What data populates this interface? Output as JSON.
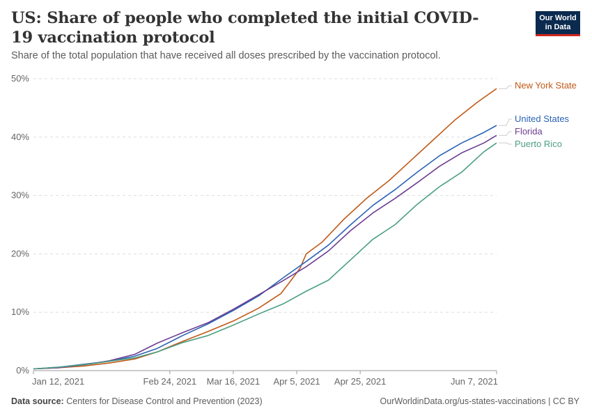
{
  "header": {
    "title": "US: Share of people who completed the initial COVID-19 vaccination protocol",
    "subtitle": "Share of the total population that have received all doses prescribed by the vaccination protocol.",
    "logo_line1": "Our World",
    "logo_line2": "in Data"
  },
  "footer": {
    "source_label": "Data source:",
    "source_text": "Centers for Disease Control and Prevention (2023)",
    "url_text": "OurWorldinData.org/us-states-vaccinations | CC BY"
  },
  "colors": {
    "new_york": "#c05917",
    "united_states": "#2b63b5",
    "florida": "#6d3e91",
    "puerto_rico": "#4c9f83",
    "grid": "#dddddd",
    "axis_text": "#666666"
  },
  "chart_data": {
    "type": "line",
    "xlim": [
      "2021-01-12",
      "2021-06-07"
    ],
    "ylim": [
      0,
      50
    ],
    "y_unit": "%",
    "grid": "horizontal dashed",
    "legend": "right, labels at line ends",
    "x_ticks": [
      {
        "date": "2021-01-12",
        "label": "Jan 12, 2021"
      },
      {
        "date": "2021-02-24",
        "label": "Feb 24, 2021"
      },
      {
        "date": "2021-03-16",
        "label": "Mar 16, 2021"
      },
      {
        "date": "2021-04-05",
        "label": "Apr 5, 2021"
      },
      {
        "date": "2021-04-25",
        "label": "Apr 25, 2021"
      },
      {
        "date": "2021-06-07",
        "label": "Jun 7, 2021"
      }
    ],
    "y_ticks": [
      {
        "value": 0,
        "label": "0%"
      },
      {
        "value": 10,
        "label": "10%"
      },
      {
        "value": 20,
        "label": "20%"
      },
      {
        "value": 30,
        "label": "30%"
      },
      {
        "value": 40,
        "label": "40%"
      },
      {
        "value": 50,
        "label": "50%"
      }
    ],
    "series": [
      {
        "name": "New York State",
        "color_key": "new_york",
        "points": [
          [
            "2021-01-12",
            0.3
          ],
          [
            "2021-01-20",
            0.5
          ],
          [
            "2021-01-28",
            0.8
          ],
          [
            "2021-02-05",
            1.3
          ],
          [
            "2021-02-13",
            2.0
          ],
          [
            "2021-02-20",
            3.2
          ],
          [
            "2021-02-28",
            5.0
          ],
          [
            "2021-03-08",
            6.7
          ],
          [
            "2021-03-16",
            8.5
          ],
          [
            "2021-03-24",
            10.7
          ],
          [
            "2021-03-31",
            13.2
          ],
          [
            "2021-04-03",
            15.3
          ],
          [
            "2021-04-06",
            17.5
          ],
          [
            "2021-04-08",
            20.0
          ],
          [
            "2021-04-13",
            22.0
          ],
          [
            "2021-04-20",
            26.0
          ],
          [
            "2021-04-27",
            29.5
          ],
          [
            "2021-05-04",
            32.5
          ],
          [
            "2021-05-11",
            36.0
          ],
          [
            "2021-05-18",
            39.5
          ],
          [
            "2021-05-25",
            43.0
          ],
          [
            "2021-06-01",
            46.0
          ],
          [
            "2021-06-07",
            48.3
          ]
        ]
      },
      {
        "name": "United States",
        "color_key": "united_states",
        "points": [
          [
            "2021-01-12",
            0.3
          ],
          [
            "2021-01-20",
            0.6
          ],
          [
            "2021-01-28",
            1.1
          ],
          [
            "2021-02-05",
            1.6
          ],
          [
            "2021-02-13",
            2.5
          ],
          [
            "2021-02-20",
            3.8
          ],
          [
            "2021-02-28",
            6.0
          ],
          [
            "2021-03-08",
            8.0
          ],
          [
            "2021-03-16",
            10.3
          ],
          [
            "2021-03-24",
            12.8
          ],
          [
            "2021-04-01",
            16.0
          ],
          [
            "2021-04-08",
            18.7
          ],
          [
            "2021-04-15",
            21.5
          ],
          [
            "2021-04-22",
            25.0
          ],
          [
            "2021-04-29",
            28.3
          ],
          [
            "2021-05-06",
            31.0
          ],
          [
            "2021-05-13",
            34.0
          ],
          [
            "2021-05-20",
            36.8
          ],
          [
            "2021-05-27",
            39.0
          ],
          [
            "2021-06-03",
            40.8
          ],
          [
            "2021-06-07",
            42.0
          ]
        ]
      },
      {
        "name": "Florida",
        "color_key": "florida",
        "points": [
          [
            "2021-01-12",
            0.3
          ],
          [
            "2021-01-20",
            0.5
          ],
          [
            "2021-01-28",
            1.0
          ],
          [
            "2021-02-05",
            1.7
          ],
          [
            "2021-02-13",
            2.8
          ],
          [
            "2021-02-20",
            4.7
          ],
          [
            "2021-02-28",
            6.5
          ],
          [
            "2021-03-08",
            8.2
          ],
          [
            "2021-03-16",
            10.5
          ],
          [
            "2021-03-24",
            13.0
          ],
          [
            "2021-04-01",
            15.5
          ],
          [
            "2021-04-08",
            17.8
          ],
          [
            "2021-04-15",
            20.5
          ],
          [
            "2021-04-22",
            24.0
          ],
          [
            "2021-04-29",
            27.0
          ],
          [
            "2021-05-06",
            29.5
          ],
          [
            "2021-05-13",
            32.2
          ],
          [
            "2021-05-20",
            35.0
          ],
          [
            "2021-05-27",
            37.3
          ],
          [
            "2021-06-03",
            39.0
          ],
          [
            "2021-06-07",
            40.3
          ]
        ]
      },
      {
        "name": "Puerto Rico",
        "color_key": "puerto_rico",
        "points": [
          [
            "2021-01-12",
            0.3
          ],
          [
            "2021-01-20",
            0.6
          ],
          [
            "2021-01-28",
            1.0
          ],
          [
            "2021-02-05",
            1.6
          ],
          [
            "2021-02-13",
            2.2
          ],
          [
            "2021-02-20",
            3.2
          ],
          [
            "2021-02-28",
            4.8
          ],
          [
            "2021-03-08",
            6.0
          ],
          [
            "2021-03-16",
            7.8
          ],
          [
            "2021-03-24",
            9.7
          ],
          [
            "2021-04-01",
            11.5
          ],
          [
            "2021-04-08",
            13.6
          ],
          [
            "2021-04-15",
            15.5
          ],
          [
            "2021-04-22",
            19.0
          ],
          [
            "2021-04-29",
            22.5
          ],
          [
            "2021-05-06",
            25.0
          ],
          [
            "2021-05-13",
            28.5
          ],
          [
            "2021-05-20",
            31.5
          ],
          [
            "2021-05-27",
            34.0
          ],
          [
            "2021-06-03",
            37.5
          ],
          [
            "2021-06-07",
            39.0
          ]
        ]
      }
    ]
  }
}
